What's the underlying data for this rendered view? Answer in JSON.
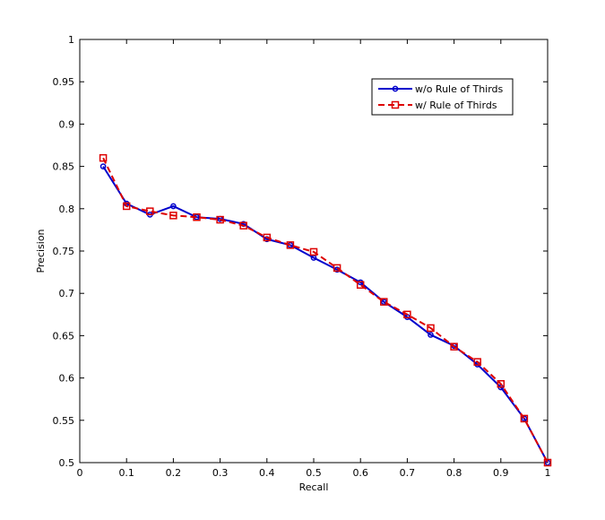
{
  "chart_data": {
    "type": "line",
    "title": "",
    "xlabel": "Recall",
    "ylabel": "Precision",
    "xlim": [
      0,
      1
    ],
    "ylim": [
      0.5,
      1
    ],
    "xticks": [
      "0",
      "0.1",
      "0.2",
      "0.3",
      "0.4",
      "0.5",
      "0.6",
      "0.7",
      "0.8",
      "0.9",
      "1"
    ],
    "yticks": [
      "0.5",
      "0.55",
      "0.6",
      "0.65",
      "0.7",
      "0.75",
      "0.8",
      "0.85",
      "0.9",
      "0.95",
      "1"
    ],
    "grid": false,
    "legend_position": "top-right",
    "series": [
      {
        "name": "w/o Rule of Thirds",
        "color": "#0000cc",
        "line_style": "solid",
        "marker": "circle",
        "x": [
          0.05,
          0.1,
          0.15,
          0.2,
          0.25,
          0.3,
          0.35,
          0.4,
          0.45,
          0.5,
          0.55,
          0.6,
          0.65,
          0.7,
          0.75,
          0.8,
          0.85,
          0.9,
          0.95,
          1.0
        ],
        "y": [
          0.85,
          0.806,
          0.793,
          0.803,
          0.79,
          0.788,
          0.782,
          0.764,
          0.757,
          0.742,
          0.728,
          0.713,
          0.69,
          0.672,
          0.651,
          0.638,
          0.616,
          0.589,
          0.552,
          0.5
        ]
      },
      {
        "name": "w/ Rule of Thirds",
        "color": "#dd0000",
        "line_style": "dashed",
        "marker": "square",
        "x": [
          0.05,
          0.1,
          0.15,
          0.2,
          0.25,
          0.3,
          0.35,
          0.4,
          0.45,
          0.5,
          0.55,
          0.6,
          0.65,
          0.7,
          0.75,
          0.8,
          0.85,
          0.9,
          0.95,
          1.0
        ],
        "y": [
          0.86,
          0.803,
          0.797,
          0.792,
          0.79,
          0.787,
          0.78,
          0.766,
          0.757,
          0.749,
          0.73,
          0.71,
          0.69,
          0.675,
          0.659,
          0.637,
          0.619,
          0.593,
          0.552,
          0.5
        ]
      }
    ]
  }
}
